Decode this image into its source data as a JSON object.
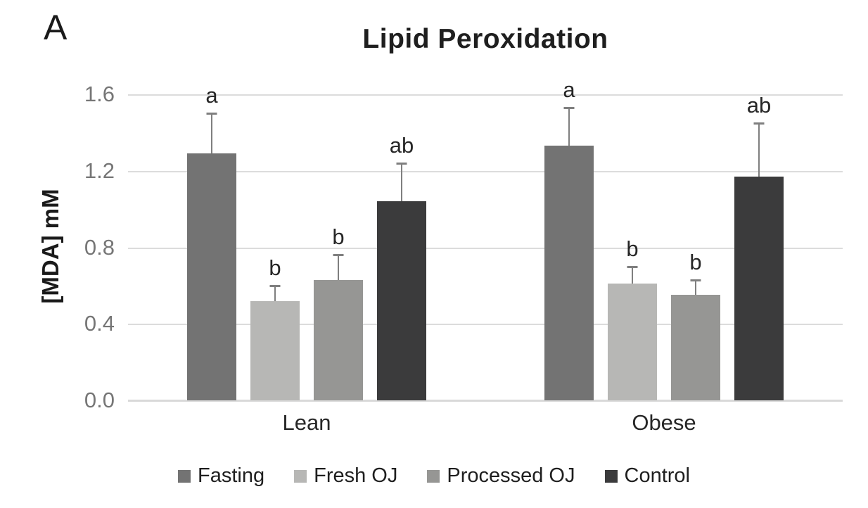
{
  "panel_label": "A",
  "chart_data": {
    "type": "bar",
    "title": "Lipid Peroxidation",
    "ylabel": "[MDA] mM",
    "xlabel": "",
    "categories": [
      "Lean",
      "Obese"
    ],
    "series": [
      {
        "name": "Fasting",
        "color": "#737373",
        "values": [
          1.29,
          1.33
        ],
        "errors": [
          0.21,
          0.2
        ],
        "sig_letters": [
          "a",
          "a"
        ]
      },
      {
        "name": "Fresh OJ",
        "color": "#b7b7b5",
        "values": [
          0.52,
          0.61
        ],
        "errors": [
          0.08,
          0.09
        ],
        "sig_letters": [
          "b",
          "b"
        ]
      },
      {
        "name": "Processed OJ",
        "color": "#969694",
        "values": [
          0.63,
          0.55
        ],
        "errors": [
          0.13,
          0.08
        ],
        "sig_letters": [
          "b",
          "b"
        ]
      },
      {
        "name": "Control",
        "color": "#3b3b3c",
        "values": [
          1.04,
          1.17
        ],
        "errors": [
          0.2,
          0.28
        ],
        "sig_letters": [
          "ab",
          "ab"
        ]
      }
    ],
    "ylim": [
      0,
      1.6
    ],
    "yticks": [
      "1.6",
      "1.2",
      "0.8",
      "0.4",
      "0.0"
    ],
    "grid": true,
    "legend_position": "bottom",
    "colors": {
      "gridline": "#dcdcdc",
      "axis_line": "#d9d9d9",
      "error_bar": "#7f7f7f",
      "tick_text": "#767676",
      "label_text": "#262626"
    }
  }
}
